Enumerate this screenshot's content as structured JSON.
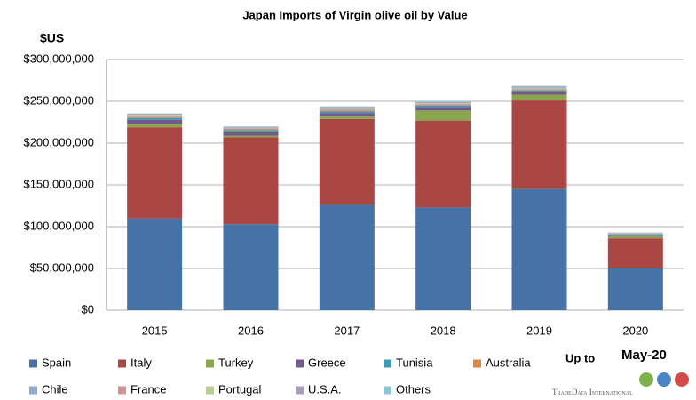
{
  "chart_data": {
    "type": "stacked_bar",
    "title": "Japan Imports of  Virgin olive oil by Value",
    "y_label": "$US",
    "annotations": [
      "Up to",
      "May-20"
    ],
    "source": "TradeData International",
    "categories": [
      "2015",
      "2016",
      "2017",
      "2018",
      "2019",
      "2020"
    ],
    "series": [
      {
        "name": "Spain",
        "color": "#4572a7",
        "values": [
          110000000,
          103000000,
          126000000,
          123000000,
          145000000,
          50000000
        ]
      },
      {
        "name": "Italy",
        "color": "#aa4643",
        "values": [
          109000000,
          104000000,
          103000000,
          104000000,
          106000000,
          36000000
        ]
      },
      {
        "name": "Turkey",
        "color": "#89a54e",
        "values": [
          4000000,
          2000000,
          3000000,
          12000000,
          7000000,
          2000000
        ]
      },
      {
        "name": "Greece",
        "color": "#71588f",
        "values": [
          5000000,
          5000000,
          4000000,
          4000000,
          3000000,
          1500000
        ]
      },
      {
        "name": "Tunisia",
        "color": "#4198af",
        "values": [
          2000000,
          1500000,
          2000000,
          2000000,
          2000000,
          1000000
        ]
      },
      {
        "name": "Australia",
        "color": "#db843d",
        "values": [
          1000000,
          1000000,
          1000000,
          1000000,
          1000000,
          500000
        ]
      },
      {
        "name": "Chile",
        "color": "#93a9cf",
        "values": [
          1000000,
          1000000,
          1000000,
          1000000,
          1000000,
          500000
        ]
      },
      {
        "name": "France",
        "color": "#d19392",
        "values": [
          1000000,
          500000,
          1000000,
          500000,
          500000,
          300000
        ]
      },
      {
        "name": "Portugal",
        "color": "#b9cd96",
        "values": [
          1000000,
          500000,
          1000000,
          500000,
          1000000,
          300000
        ]
      },
      {
        "name": "U.S.A.",
        "color": "#a99bbd",
        "values": [
          1000000,
          1000000,
          1000000,
          1000000,
          1000000,
          400000
        ]
      },
      {
        "name": "Others",
        "color": "#92c3d5",
        "values": [
          500000,
          500000,
          1000000,
          1000000,
          1000000,
          500000
        ]
      }
    ],
    "ylim": [
      0,
      300000000
    ],
    "yticks": [
      {
        "value": 0,
        "label": "$0"
      },
      {
        "value": 50000000,
        "label": "$50,000,000"
      },
      {
        "value": 100000000,
        "label": "$100,000,000"
      },
      {
        "value": 150000000,
        "label": "$150,000,000"
      },
      {
        "value": 200000000,
        "label": "$200,000,000"
      },
      {
        "value": 250000000,
        "label": "$250,000,000"
      },
      {
        "value": 300000000,
        "label": "$300,000,000"
      }
    ],
    "grid": true
  }
}
